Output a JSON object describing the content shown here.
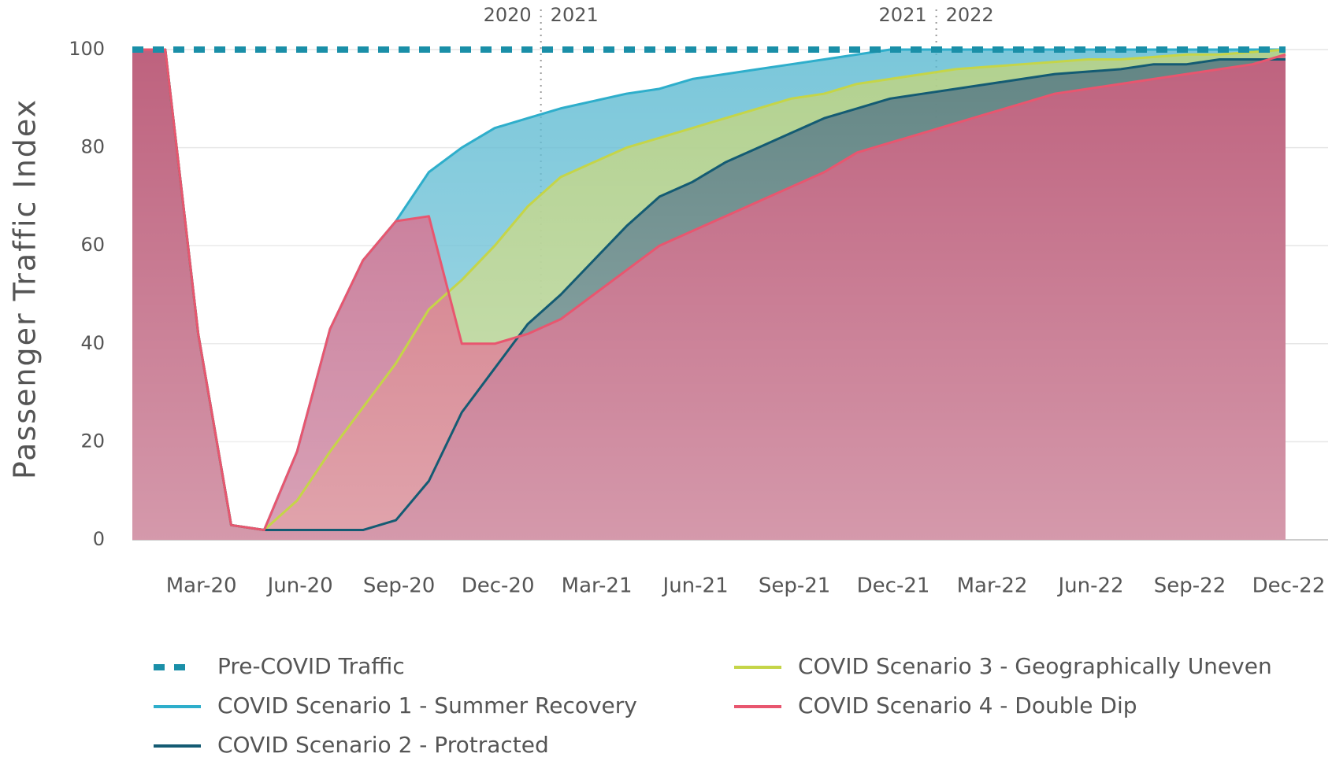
{
  "chart_data": {
    "type": "area",
    "y_label": "Passenger Traffic Index",
    "annotations": [
      {
        "left": "2020",
        "right": "2021"
      },
      {
        "left": "2021",
        "right": "2022"
      }
    ],
    "categories": [
      null,
      null,
      "Mar-20",
      null,
      null,
      "Jun-20",
      null,
      null,
      "Sep-20",
      null,
      null,
      "Dec-20",
      null,
      null,
      "Mar-21",
      null,
      null,
      "Jun-21",
      null,
      null,
      "Sep-21",
      null,
      null,
      "Dec-21",
      null,
      null,
      "Mar-22",
      null,
      null,
      "Jun-22",
      null,
      null,
      "Sep-22",
      null,
      null,
      "Dec-22"
    ],
    "ylim": [
      0,
      100
    ],
    "yticks": [
      0,
      20,
      40,
      60,
      80,
      100
    ],
    "grid": true,
    "series": [
      {
        "name": "Pre-COVID Traffic",
        "color": "#1a8fa8",
        "dashed": true,
        "values": [
          100,
          100,
          100,
          100,
          100,
          100,
          100,
          100,
          100,
          100,
          100,
          100,
          100,
          100,
          100,
          100,
          100,
          100,
          100,
          100,
          100,
          100,
          100,
          100,
          100,
          100,
          100,
          100,
          100,
          100,
          100,
          100,
          100,
          100,
          100,
          100
        ]
      },
      {
        "name": "COVID Scenario 1 - Summer Recovery",
        "color": "#2eaecb",
        "fill": "#56b7d0",
        "values": [
          100,
          100,
          42,
          3,
          2,
          18,
          43,
          57,
          65,
          75,
          80,
          84,
          86,
          88,
          89.5,
          91,
          92,
          94,
          95,
          96,
          97,
          98,
          99,
          100,
          100,
          100,
          100,
          100,
          100,
          100,
          100,
          100,
          100,
          100,
          100,
          100
        ]
      },
      {
        "name": "COVID Scenario 2 - Protracted",
        "color": "#145b73",
        "fill": "#4b6f82",
        "values": [
          100,
          100,
          42,
          3,
          2,
          2,
          2,
          2,
          4,
          12,
          26,
          35,
          44,
          50,
          57,
          64,
          70,
          73,
          77,
          80,
          83,
          86,
          88,
          90,
          91,
          92,
          93,
          94,
          95,
          95.5,
          96,
          97,
          97,
          98,
          98,
          98
        ]
      },
      {
        "name": "COVID Scenario 3 - Geographically Uneven",
        "color": "#c5d548",
        "fill": "#c2d47a",
        "values": [
          100,
          100,
          42,
          3,
          2,
          8,
          18,
          27,
          36,
          47,
          53,
          60,
          68,
          74,
          77,
          80,
          82,
          84,
          86,
          88,
          90,
          91,
          93,
          94,
          95,
          96,
          96.5,
          97,
          97.5,
          98,
          98,
          98.5,
          99,
          99,
          99.5,
          100
        ]
      },
      {
        "name": "COVID Scenario 4 - Double Dip",
        "color": "#e8566f",
        "fill": "#d9587c",
        "values": [
          100,
          100,
          42,
          3,
          2,
          18,
          43,
          57,
          65,
          66,
          40,
          40,
          42,
          45,
          50,
          55,
          60,
          63,
          66,
          69,
          72,
          75,
          79,
          81,
          83,
          85,
          87,
          89,
          91,
          92,
          93,
          94,
          95,
          96,
          97,
          99
        ]
      }
    ]
  }
}
